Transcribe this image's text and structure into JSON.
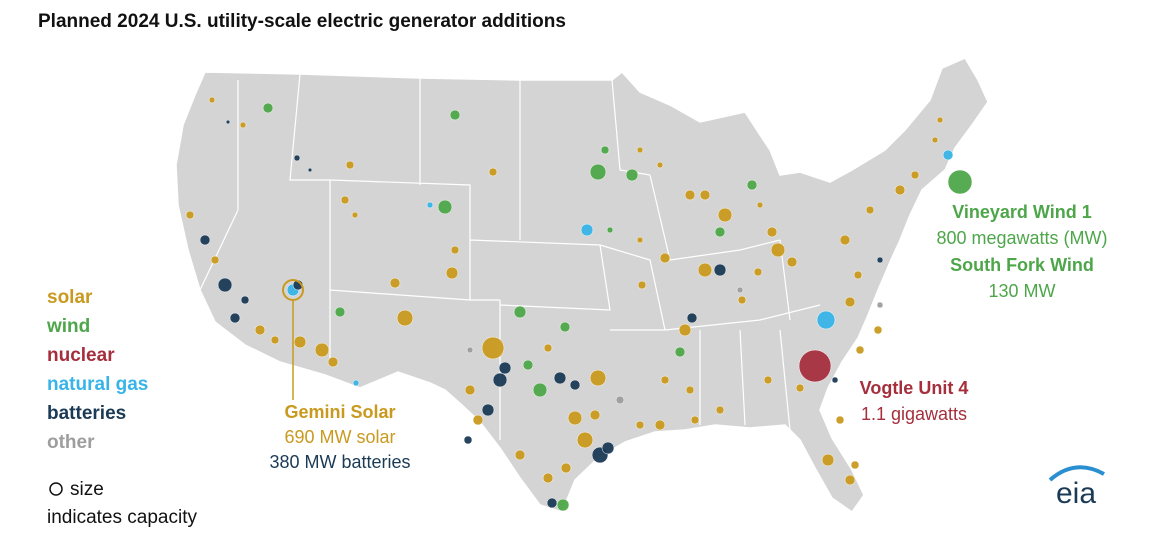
{
  "title": "Planned 2024 U.S. utility-scale electric generator additions",
  "legend": {
    "items": [
      {
        "label": "solar",
        "color": "#c99a1f"
      },
      {
        "label": "wind",
        "color": "#4ea64a"
      },
      {
        "label": "nuclear",
        "color": "#a52f3d"
      },
      {
        "label": "natural gas",
        "color": "#38b4e8"
      },
      {
        "label": "batteries",
        "color": "#1b3a56"
      },
      {
        "label": "other",
        "color": "#9e9e9e"
      }
    ],
    "size_note": [
      "size",
      "indicates capacity"
    ]
  },
  "annotations": {
    "gemini": [
      "Gemini Solar",
      "690 MW solar",
      "380 MW batteries"
    ],
    "vineyard": [
      "Vineyard Wind 1",
      "800 megawatts (MW)",
      "South Fork Wind",
      "130 MW"
    ],
    "vogtle": [
      "Vogtle Unit 4",
      "1.1 gigawatts"
    ]
  },
  "logo": "eia"
}
